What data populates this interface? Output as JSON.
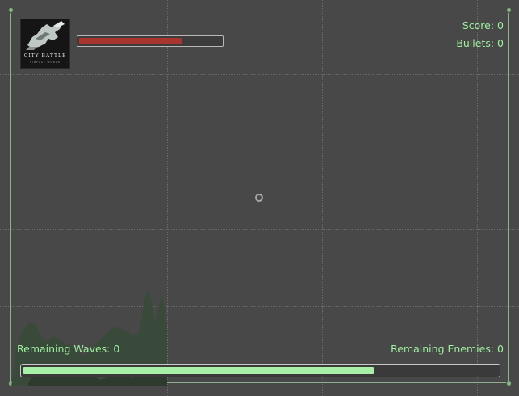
{
  "logo": {
    "title": "CITY BATTLE",
    "subtitle": "VIRTUAL WORLD"
  },
  "player": {
    "health_fraction": 0.72
  },
  "hud": {
    "score_label": "Score: 0",
    "bullets_label": "Bullets: 0",
    "remaining_waves_label": "Remaining Waves: 0",
    "remaining_enemies_label": "Remaining Enemies: 0"
  },
  "wave_progress": {
    "fraction": 0.74
  },
  "colors": {
    "hud_text": "#9ff09f",
    "health": "#a8362e",
    "wave_progress": "#a8f0a8",
    "background": "#484848"
  }
}
